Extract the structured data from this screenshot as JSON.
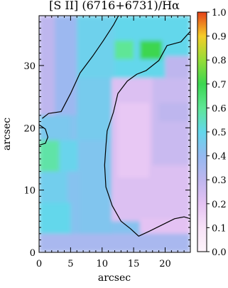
{
  "chart_data": {
    "type": "heatmap",
    "title": "[S II] (6716+6731)/Hα",
    "xlabel": "arcsec",
    "ylabel": "arcsec",
    "xlim": [
      0,
      24
    ],
    "ylim": [
      0,
      38
    ],
    "x_ticks": [
      0,
      5,
      10,
      15,
      20
    ],
    "y_ticks": [
      0,
      10,
      20,
      30
    ],
    "colorbar": {
      "range": [
        0.0,
        1.0
      ],
      "ticks": [
        "0.0",
        "0.1",
        "0.2",
        "0.3",
        "0.4",
        "0.5",
        "0.6",
        "0.7",
        "0.8",
        "0.9",
        "1.0"
      ]
    },
    "contours": [
      [
        [
          0.5,
          21.5
        ],
        [
          1.5,
          22.3
        ],
        [
          3.5,
          22.6
        ],
        [
          5.0,
          25.5
        ],
        [
          6.5,
          28.8
        ],
        [
          8.5,
          31.5
        ],
        [
          10.2,
          34.0
        ],
        [
          11.8,
          36.5
        ],
        [
          12.6,
          38.0
        ]
      ],
      [
        [
          0,
          20.5
        ],
        [
          1.0,
          19.8
        ],
        [
          1.4,
          18.5
        ],
        [
          1.0,
          17.5
        ],
        [
          0,
          17.2
        ]
      ],
      [
        [
          24,
          35.5
        ],
        [
          22.5,
          33.8
        ],
        [
          20.3,
          33.2
        ],
        [
          19.0,
          30.8
        ],
        [
          17.0,
          29.2
        ],
        [
          15.5,
          28.6
        ],
        [
          14.0,
          27.5
        ],
        [
          12.5,
          25.5
        ],
        [
          11.8,
          22.5
        ],
        [
          10.8,
          19.5
        ],
        [
          10.6,
          17.0
        ],
        [
          10.4,
          14.0
        ],
        [
          10.6,
          10.5
        ],
        [
          11.6,
          7.5
        ],
        [
          13.0,
          5.0
        ],
        [
          14.5,
          3.8
        ],
        [
          15.8,
          2.6
        ],
        [
          17.5,
          3.4
        ],
        [
          19.5,
          4.4
        ],
        [
          21.5,
          5.4
        ],
        [
          23.0,
          5.7
        ],
        [
          24,
          5.4
        ]
      ]
    ],
    "regions": [
      {
        "x": 0,
        "y": 0,
        "w": 24,
        "h": 38,
        "value": 0.43
      },
      {
        "x": 0,
        "y": 0,
        "w": 24,
        "h": 3.0,
        "value": 0.35
      },
      {
        "x": 0,
        "y": 3.0,
        "w": 5.0,
        "h": 5.0,
        "value": 0.5
      },
      {
        "x": 0,
        "y": 8.0,
        "w": 4.5,
        "h": 5.0,
        "value": 0.47
      },
      {
        "x": 0,
        "y": 13.0,
        "w": 3.2,
        "h": 5.0,
        "value": 0.58
      },
      {
        "x": 3.2,
        "y": 13.0,
        "w": 3.0,
        "h": 5.0,
        "value": 0.49
      },
      {
        "x": 0,
        "y": 18.0,
        "w": 5.0,
        "h": 4.0,
        "value": 0.45
      },
      {
        "x": 0,
        "y": 22.0,
        "w": 2.5,
        "h": 16.0,
        "value": 0.3
      },
      {
        "x": 2.5,
        "y": 22.0,
        "w": 5.0,
        "h": 16.0,
        "value": 0.38
      },
      {
        "x": 6.0,
        "y": 28.0,
        "w": 6.0,
        "h": 10.0,
        "value": 0.48
      },
      {
        "x": 12.0,
        "y": 28.0,
        "w": 12.0,
        "h": 10.0,
        "value": 0.5
      },
      {
        "x": 16.0,
        "y": 31.0,
        "w": 3.5,
        "h": 3.0,
        "value": 0.7
      },
      {
        "x": 12.0,
        "y": 31.0,
        "w": 3.0,
        "h": 3.0,
        "value": 0.6
      },
      {
        "x": 6.0,
        "y": 18.0,
        "w": 6.0,
        "h": 10.0,
        "value": 0.46
      },
      {
        "x": 6.5,
        "y": 3.0,
        "w": 5.0,
        "h": 15.0,
        "value": 0.44
      },
      {
        "x": 11.5,
        "y": 5.0,
        "w": 12.5,
        "h": 23.0,
        "value": 0.22
      },
      {
        "x": 12.5,
        "y": 12.0,
        "w": 5.0,
        "h": 12.0,
        "value": 0.18
      },
      {
        "x": 18.0,
        "y": 14.0,
        "w": 6.0,
        "h": 14.0,
        "value": 0.27
      },
      {
        "x": 19.0,
        "y": 21.0,
        "w": 5.0,
        "h": 3.0,
        "value": 0.3
      },
      {
        "x": 16.0,
        "y": 3.0,
        "w": 8.0,
        "h": 2.5,
        "value": 0.2
      },
      {
        "x": 20.0,
        "y": 28.0,
        "w": 4.0,
        "h": 3.5,
        "value": 0.3
      }
    ]
  }
}
